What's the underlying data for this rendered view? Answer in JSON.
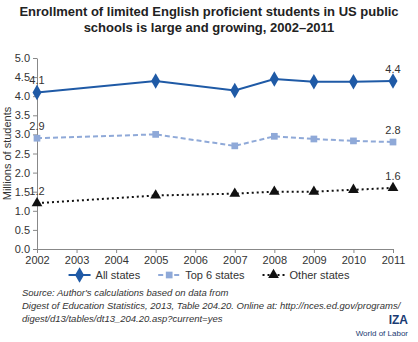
{
  "chart_data": {
    "type": "line",
    "title": "Enrollment of limited English proficient students in US public schools is large and growing, 2002–2011",
    "y_label": "Millions of students",
    "x": [
      2002,
      2005,
      2007,
      2008,
      2009,
      2010,
      2011
    ],
    "xlim": [
      2002,
      2011
    ],
    "xticks": [
      2002,
      2003,
      2004,
      2005,
      2006,
      2007,
      2008,
      2009,
      2010,
      2011
    ],
    "ylim": [
      0,
      5
    ],
    "yticks": [
      {
        "value": 0,
        "label": "0.0"
      },
      0.5,
      {
        "value": 1,
        "label": "1.0"
      },
      1.5,
      {
        "value": 2,
        "label": "2.0"
      },
      2.5,
      {
        "value": 3,
        "label": "3.0"
      },
      3.5,
      {
        "value": 4,
        "label": "4.0"
      },
      4.5,
      {
        "value": 5,
        "label": "5.0"
      }
    ],
    "grid": false,
    "legend": "bottom",
    "series": [
      {
        "name": "All states",
        "color": "#1f5aa6",
        "marker": "diamond",
        "line_style": "solid",
        "values": [
          4.1,
          4.4,
          4.15,
          4.45,
          4.38,
          4.38,
          4.4
        ],
        "data_labels": true,
        "value_labels": [
          "4.1",
          null,
          null,
          null,
          null,
          null,
          "4.4"
        ]
      },
      {
        "name": "Top 6 states",
        "color": "#8fa9d8",
        "marker": "square",
        "line_style": "dashed",
        "values": [
          2.9,
          3.0,
          2.7,
          2.95,
          2.88,
          2.83,
          2.8
        ],
        "data_labels": true,
        "value_labels": [
          "2.9",
          null,
          null,
          null,
          null,
          null,
          "2.8"
        ]
      },
      {
        "name": "Other states",
        "color": "#111111",
        "marker": "triangle",
        "line_style": "dotted",
        "values": [
          1.2,
          1.4,
          1.45,
          1.5,
          1.5,
          1.55,
          1.6
        ],
        "data_labels": true,
        "value_labels": [
          "1.2",
          null,
          null,
          null,
          null,
          null,
          "1.6"
        ]
      }
    ],
    "source": [
      "Source: Author's calculations based on data from",
      "Digest of Education Statistics, 2013, Table 204.20. Online at: http://nces.ed.gov/programs/",
      "digest/d13/tables/dt13_204.20.asp?current=yes"
    ],
    "branding": [
      "IZA",
      "World of Labor"
    ]
  }
}
